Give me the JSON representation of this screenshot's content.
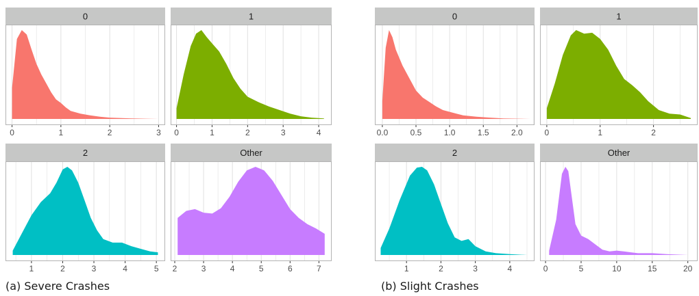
{
  "colors": {
    "0": "#F8766D",
    "1": "#7CAE00",
    "2": "#00BFC4",
    "Other": "#C77CFF",
    "strip": "#c6c7c6",
    "grid": "#e0e0e0",
    "border": "#b3b3b3"
  },
  "captions": {
    "a": "(a) Severe Crashes",
    "b": "(b) Slight Crashes"
  },
  "chart_data": [
    {
      "type": "area",
      "title": "0",
      "panel": "a",
      "xlim": [
        -0.05,
        3.05
      ],
      "xticks": [
        0,
        1,
        2,
        3
      ],
      "x": [
        0.0,
        0.1,
        0.2,
        0.3,
        0.4,
        0.5,
        0.6,
        0.7,
        0.8,
        0.9,
        1.0,
        1.1,
        1.2,
        1.4,
        1.6,
        1.8,
        2.0,
        2.4,
        2.8,
        3.0
      ],
      "y": [
        0.35,
        0.9,
        1.0,
        0.95,
        0.78,
        0.62,
        0.5,
        0.4,
        0.3,
        0.22,
        0.18,
        0.13,
        0.09,
        0.06,
        0.04,
        0.025,
        0.015,
        0.007,
        0.002,
        0.0
      ]
    },
    {
      "type": "area",
      "title": "1",
      "panel": "a",
      "xlim": [
        -0.05,
        4.25
      ],
      "xticks": [
        0,
        1,
        2,
        3,
        4
      ],
      "x": [
        0.0,
        0.2,
        0.4,
        0.55,
        0.7,
        0.85,
        1.0,
        1.2,
        1.4,
        1.6,
        1.8,
        2.0,
        2.3,
        2.6,
        2.9,
        3.2,
        3.5,
        3.8,
        4.15
      ],
      "y": [
        0.12,
        0.5,
        0.82,
        0.96,
        1.0,
        0.92,
        0.85,
        0.76,
        0.62,
        0.46,
        0.34,
        0.25,
        0.19,
        0.14,
        0.1,
        0.06,
        0.03,
        0.015,
        0.005
      ]
    },
    {
      "type": "area",
      "title": "2",
      "panel": "a",
      "xlim": [
        0.3,
        5.15
      ],
      "xticks": [
        1,
        2,
        3,
        4,
        5
      ],
      "x": [
        0.4,
        0.7,
        1.0,
        1.3,
        1.6,
        1.8,
        2.0,
        2.15,
        2.3,
        2.5,
        2.7,
        2.9,
        3.1,
        3.3,
        3.6,
        3.9,
        4.2,
        4.5,
        4.8,
        5.05
      ],
      "y": [
        0.05,
        0.25,
        0.45,
        0.6,
        0.7,
        0.82,
        0.97,
        1.0,
        0.96,
        0.82,
        0.62,
        0.42,
        0.28,
        0.18,
        0.14,
        0.14,
        0.1,
        0.07,
        0.04,
        0.03
      ]
    },
    {
      "type": "area",
      "title": "Other",
      "panel": "a",
      "xlim": [
        2.0,
        7.3
      ],
      "xticks": [
        2,
        3,
        4,
        5,
        6,
        7
      ],
      "x": [
        2.1,
        2.4,
        2.7,
        3.0,
        3.3,
        3.6,
        3.9,
        4.2,
        4.5,
        4.8,
        5.1,
        5.4,
        5.7,
        6.0,
        6.3,
        6.6,
        6.9,
        7.2
      ],
      "y": [
        0.42,
        0.5,
        0.52,
        0.48,
        0.47,
        0.53,
        0.66,
        0.83,
        0.96,
        1.0,
        0.96,
        0.84,
        0.68,
        0.52,
        0.42,
        0.35,
        0.3,
        0.24
      ]
    },
    {
      "type": "area",
      "title": "0",
      "panel": "b",
      "xlim": [
        -0.05,
        2.2
      ],
      "xticks": [
        0.0,
        0.5,
        1.0,
        1.5,
        2.0
      ],
      "xticklabels": [
        "0.0",
        "0.5",
        "1.0",
        "1.5",
        "2.0"
      ],
      "x": [
        0.0,
        0.05,
        0.1,
        0.15,
        0.2,
        0.3,
        0.4,
        0.5,
        0.6,
        0.7,
        0.8,
        0.9,
        1.0,
        1.1,
        1.2,
        1.4,
        1.6,
        1.8,
        2.2
      ],
      "y": [
        0.2,
        0.8,
        1.0,
        0.92,
        0.78,
        0.6,
        0.46,
        0.32,
        0.24,
        0.19,
        0.14,
        0.1,
        0.08,
        0.06,
        0.04,
        0.025,
        0.015,
        0.005,
        0.0
      ]
    },
    {
      "type": "area",
      "title": "1",
      "panel": "b",
      "xlim": [
        -0.05,
        2.75
      ],
      "xticks": [
        0,
        1,
        2
      ],
      "x": [
        0.0,
        0.15,
        0.3,
        0.45,
        0.55,
        0.7,
        0.85,
        1.0,
        1.15,
        1.3,
        1.45,
        1.6,
        1.75,
        1.9,
        2.1,
        2.3,
        2.5,
        2.7
      ],
      "y": [
        0.12,
        0.4,
        0.72,
        0.94,
        1.0,
        0.96,
        0.97,
        0.9,
        0.78,
        0.6,
        0.45,
        0.38,
        0.3,
        0.2,
        0.1,
        0.06,
        0.05,
        0.01
      ]
    },
    {
      "type": "area",
      "title": "2",
      "panel": "b",
      "xlim": [
        0.2,
        4.6
      ],
      "xticks": [
        1,
        2,
        3,
        4
      ],
      "x": [
        0.25,
        0.5,
        0.8,
        1.1,
        1.3,
        1.45,
        1.6,
        1.8,
        2.0,
        2.2,
        2.4,
        2.6,
        2.8,
        3.0,
        3.3,
        3.6,
        4.0,
        4.5
      ],
      "y": [
        0.08,
        0.3,
        0.62,
        0.9,
        0.99,
        1.0,
        0.96,
        0.8,
        0.58,
        0.36,
        0.2,
        0.16,
        0.18,
        0.1,
        0.04,
        0.02,
        0.01,
        0.0
      ]
    },
    {
      "type": "area",
      "title": "Other",
      "panel": "b",
      "xlim": [
        -0.2,
        20.8
      ],
      "xticks": [
        0,
        5,
        10,
        15,
        20
      ],
      "x": [
        0.5,
        1.5,
        2.3,
        2.8,
        3.2,
        3.7,
        4.2,
        5.0,
        6.0,
        7.0,
        8.0,
        9.0,
        10.0,
        11.0,
        12.0,
        13.0,
        15.0,
        17.0,
        20.0
      ],
      "y": [
        0.05,
        0.4,
        0.92,
        1.0,
        0.95,
        0.65,
        0.35,
        0.22,
        0.18,
        0.12,
        0.06,
        0.04,
        0.05,
        0.04,
        0.03,
        0.02,
        0.02,
        0.01,
        0.0
      ]
    }
  ]
}
